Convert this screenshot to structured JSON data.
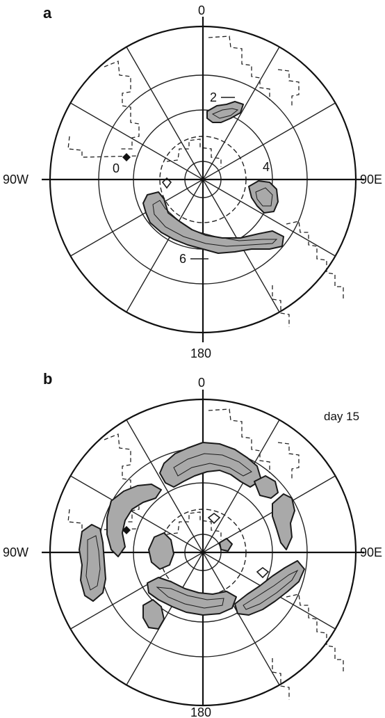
{
  "panels": [
    {
      "label": "a",
      "labels": {
        "top": "0",
        "bottom": "180",
        "left": "90W",
        "right": "90E"
      },
      "contour_labels": [
        "2",
        "0",
        "4",
        "6"
      ]
    },
    {
      "label": "b",
      "labels": {
        "top": "0",
        "bottom": "180",
        "left": "90W",
        "right": "90E"
      },
      "annotation": "day 15"
    }
  ]
}
